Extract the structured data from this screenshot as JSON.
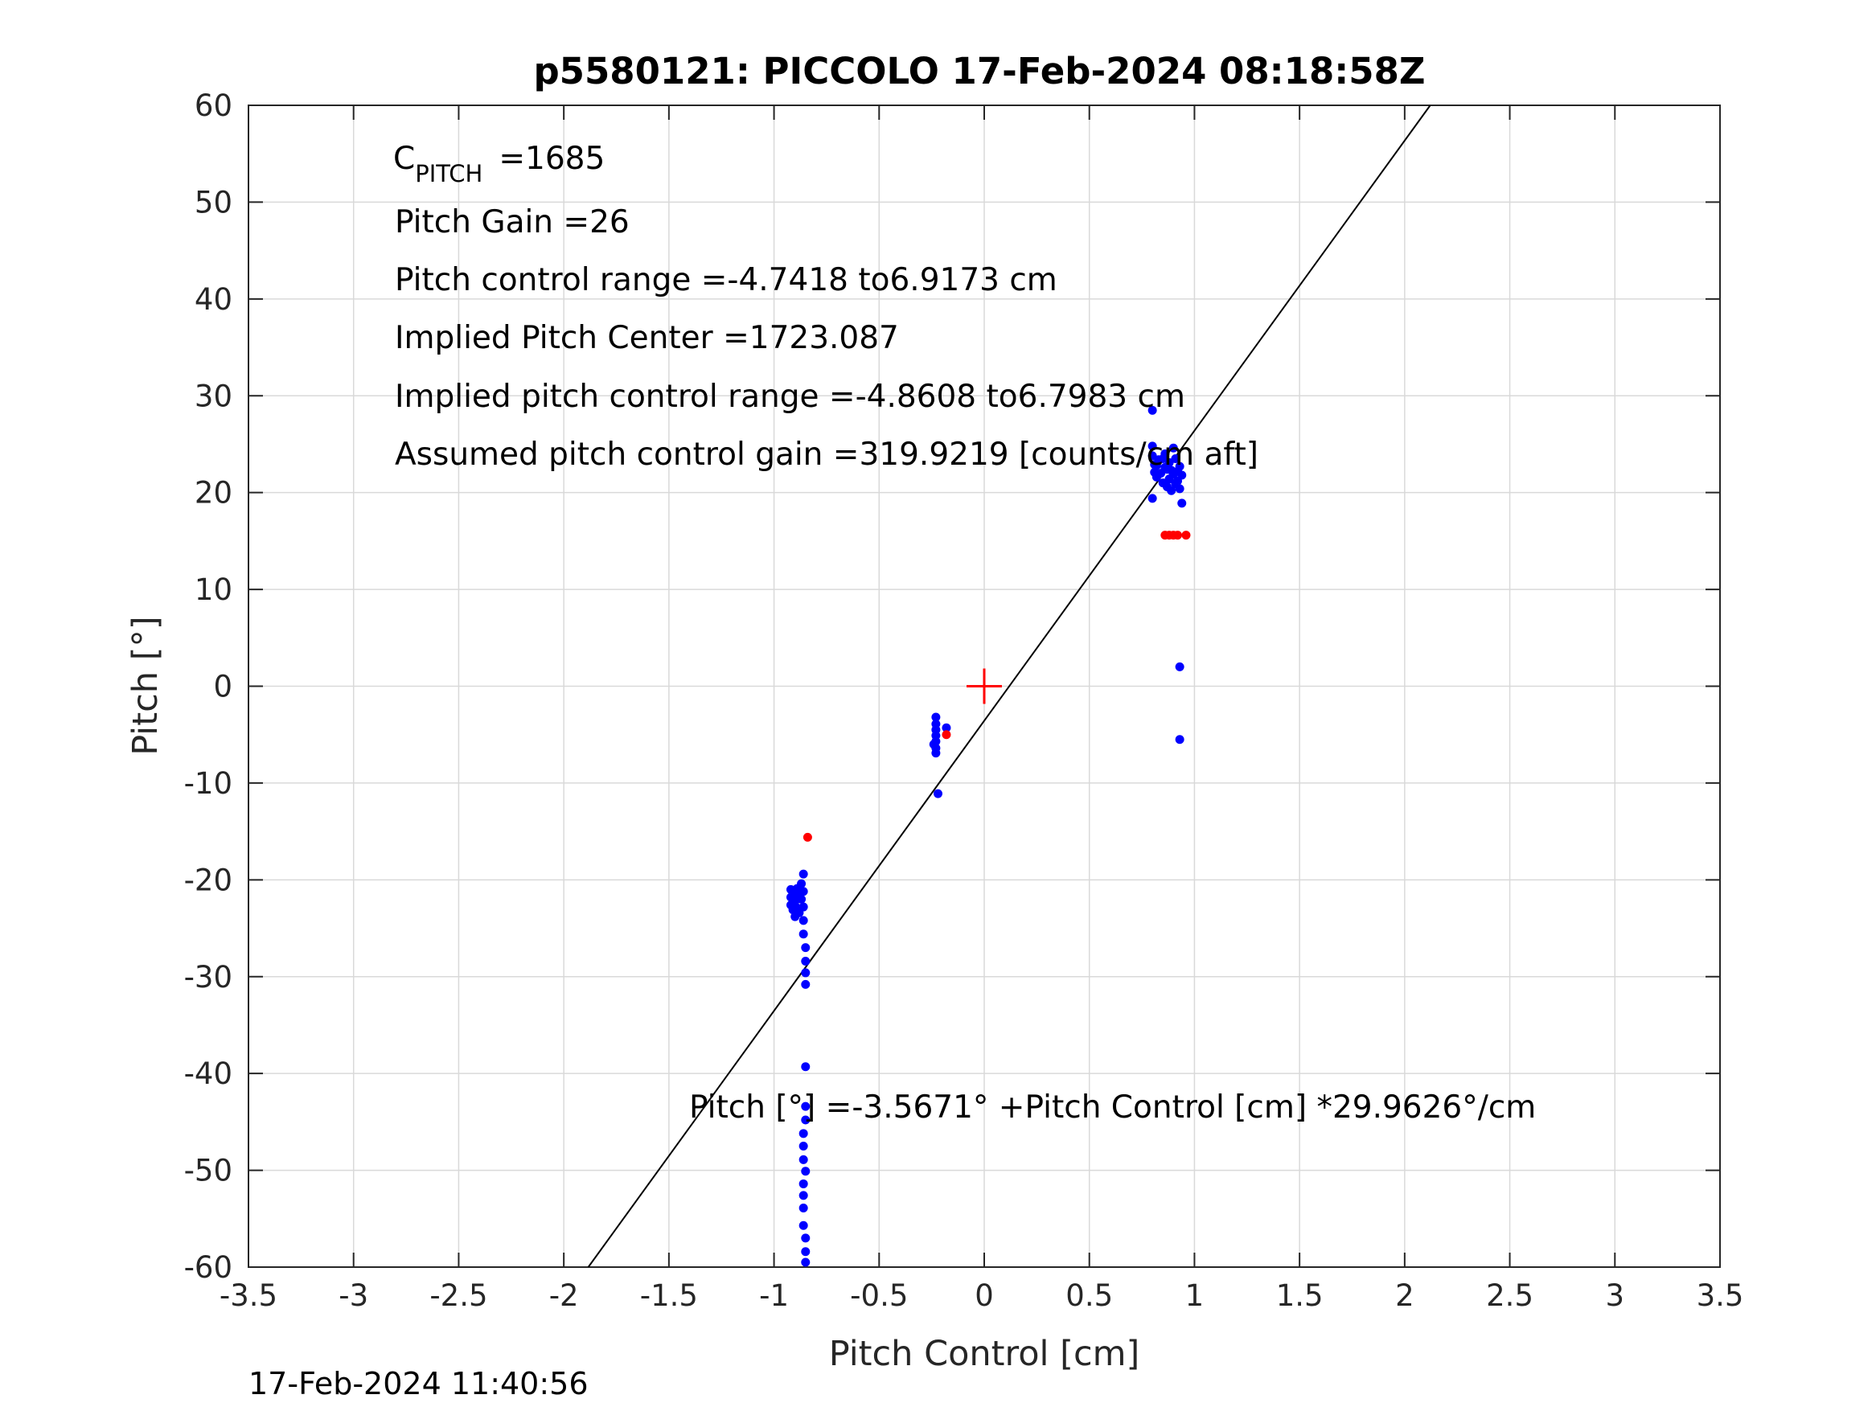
{
  "chart_data": {
    "type": "scatter",
    "title": "p5580121: PICCOLO 17-Feb-2024 08:18:58Z",
    "xlabel": "Pitch Control [cm]",
    "ylabel": "Pitch [°]",
    "xlim": [
      -3.5,
      3.5
    ],
    "ylim": [
      -60,
      60
    ],
    "xticks": [
      -3.5,
      -3,
      -2.5,
      -2,
      -1.5,
      -1,
      -0.5,
      0,
      0.5,
      1,
      1.5,
      2,
      2.5,
      3,
      3.5
    ],
    "yticks": [
      -60,
      -50,
      -40,
      -30,
      -20,
      -10,
      0,
      10,
      20,
      30,
      40,
      50,
      60
    ],
    "xtick_labels": [
      "-3.5",
      "-3",
      "-2.5",
      "-2",
      "-1.5",
      "-1",
      "-0.5",
      "0",
      "0.5",
      "1",
      "1.5",
      "2",
      "2.5",
      "3",
      "3.5"
    ],
    "ytick_labels": [
      "-60",
      "-50",
      "-40",
      "-30",
      "-20",
      "-10",
      "0",
      "10",
      "20",
      "30",
      "40",
      "50",
      "60"
    ],
    "grid": true,
    "colors": {
      "blue": "#0000ff",
      "red": "#ff0000",
      "line": "#000000",
      "grid": "#d9d9d9",
      "axis": "#262626"
    },
    "annotations": {
      "c_pitch_main": "C",
      "c_pitch_sub": "PITCH",
      "c_pitch_value": "=1685",
      "pitch_gain": "Pitch Gain =26",
      "control_range": "Pitch control range =-4.7418 to6.9173 cm",
      "implied_center": "Implied Pitch Center =1723.087",
      "implied_range": "Implied pitch control range =-4.8608 to6.7983 cm",
      "assumed_gain": "Assumed pitch control gain =319.9219 [counts/cm aft]",
      "fit_equation": "Pitch [°] =-3.5671° +Pitch Control [cm] *29.9626°/cm"
    },
    "fit_line": {
      "intercept": -3.5671,
      "slope": 29.9626
    },
    "center_marker": {
      "x": 0,
      "y": 0
    },
    "series": [
      {
        "color": "blue",
        "points": [
          [
            0.8,
            28.5
          ],
          [
            0.8,
            24.8
          ],
          [
            0.8,
            23.8
          ],
          [
            0.81,
            22.9
          ],
          [
            0.81,
            22.1
          ],
          [
            0.82,
            21.6
          ],
          [
            0.83,
            23.4
          ],
          [
            0.84,
            22.0
          ],
          [
            0.85,
            21.0
          ],
          [
            0.86,
            22.6
          ],
          [
            0.86,
            24.0
          ],
          [
            0.87,
            20.6
          ],
          [
            0.88,
            23.1
          ],
          [
            0.88,
            21.4
          ],
          [
            0.89,
            22.3
          ],
          [
            0.89,
            20.2
          ],
          [
            0.9,
            24.6
          ],
          [
            0.9,
            21.9
          ],
          [
            0.91,
            23.5
          ],
          [
            0.91,
            20.9
          ],
          [
            0.92,
            22.2
          ],
          [
            0.92,
            21.2
          ],
          [
            0.93,
            22.7
          ],
          [
            0.93,
            20.4
          ],
          [
            0.94,
            21.8
          ],
          [
            0.94,
            18.9
          ],
          [
            0.8,
            19.4
          ],
          [
            0.82,
            22.8
          ],
          [
            0.85,
            23.5
          ],
          [
            0.87,
            22.4
          ],
          [
            0.93,
            2.0
          ],
          [
            0.93,
            -5.5
          ],
          [
            -0.23,
            -3.2
          ],
          [
            -0.23,
            -3.9
          ],
          [
            -0.23,
            -4.5
          ],
          [
            -0.23,
            -5.1
          ],
          [
            -0.23,
            -5.7
          ],
          [
            -0.24,
            -6.0
          ],
          [
            -0.23,
            -6.4
          ],
          [
            -0.23,
            -6.9
          ],
          [
            -0.18,
            -4.3
          ],
          [
            -0.22,
            -11.1
          ],
          [
            -0.92,
            -21.0
          ],
          [
            -0.92,
            -21.8
          ],
          [
            -0.92,
            -22.6
          ],
          [
            -0.91,
            -23.1
          ],
          [
            -0.91,
            -21.4
          ],
          [
            -0.9,
            -22.2
          ],
          [
            -0.9,
            -23.8
          ],
          [
            -0.89,
            -20.9
          ],
          [
            -0.89,
            -22.9
          ],
          [
            -0.88,
            -21.6
          ],
          [
            -0.88,
            -23.4
          ],
          [
            -0.87,
            -20.4
          ],
          [
            -0.87,
            -22.0
          ],
          [
            -0.86,
            -19.4
          ],
          [
            -0.86,
            -21.2
          ],
          [
            -0.86,
            -22.8
          ],
          [
            -0.86,
            -24.2
          ],
          [
            -0.86,
            -25.6
          ],
          [
            -0.85,
            -27.0
          ],
          [
            -0.85,
            -28.4
          ],
          [
            -0.85,
            -29.6
          ],
          [
            -0.85,
            -30.8
          ],
          [
            -0.85,
            -39.3
          ],
          [
            -0.85,
            -43.4
          ],
          [
            -0.85,
            -44.8
          ],
          [
            -0.86,
            -46.2
          ],
          [
            -0.86,
            -47.5
          ],
          [
            -0.86,
            -48.9
          ],
          [
            -0.85,
            -50.1
          ],
          [
            -0.86,
            -51.4
          ],
          [
            -0.86,
            -52.6
          ],
          [
            -0.86,
            -53.9
          ],
          [
            -0.86,
            -55.7
          ],
          [
            -0.85,
            -57.0
          ],
          [
            -0.85,
            -58.4
          ],
          [
            -0.85,
            -59.5
          ]
        ]
      },
      {
        "color": "red",
        "points": [
          [
            0.86,
            15.6
          ],
          [
            0.88,
            15.6
          ],
          [
            0.9,
            15.6
          ],
          [
            0.92,
            15.6
          ],
          [
            0.96,
            15.6
          ],
          [
            -0.18,
            -5.0
          ],
          [
            -0.84,
            -15.6
          ]
        ]
      }
    ]
  },
  "footer": {
    "timestamp": "17-Feb-2024 11:40:56"
  }
}
